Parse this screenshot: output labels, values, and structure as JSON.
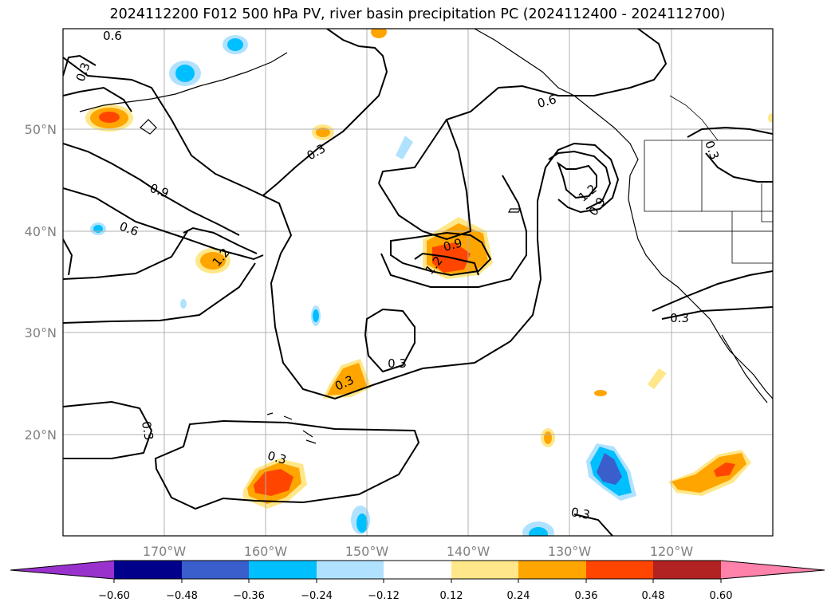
{
  "title": "2024112200 F012 500 hPa PV, river basin precipitation PC (2024112400 - 2024112700)",
  "lat_labels": [
    "50°N",
    "40°N",
    "30°N",
    "20°N"
  ],
  "lon_labels": [
    "170°W",
    "160°W",
    "150°W",
    "140°W",
    "130°W",
    "120°W"
  ],
  "map_extent": {
    "lon_min": -180,
    "lon_max": -110,
    "lat_min": 10,
    "lat_max": 60
  },
  "pv_contour_levels": [
    0.3,
    0.6,
    0.9,
    1.2
  ],
  "pv_contour_labels": [
    "0.6",
    "0.3",
    "0.9",
    "0.6",
    "1.2",
    "0.3",
    "0.9",
    "1.2",
    "0.6",
    "1.2",
    "0.9",
    "0.3",
    "0.3",
    "0.3",
    "0.3",
    "0.3",
    "0.3",
    "0.3"
  ],
  "colorbar": {
    "ticks": [
      "−0.60",
      "−0.48",
      "−0.36",
      "−0.24",
      "−0.12",
      "0.12",
      "0.24",
      "0.36",
      "0.48",
      "0.60"
    ],
    "colors": [
      "#9932cc",
      "#00008b",
      "#3a5fcd",
      "#00bfff",
      "#b0e2ff",
      "#ffffff",
      "#ffe78a",
      "#ffa500",
      "#ff4500",
      "#b22222",
      "#ff82ab"
    ]
  }
}
